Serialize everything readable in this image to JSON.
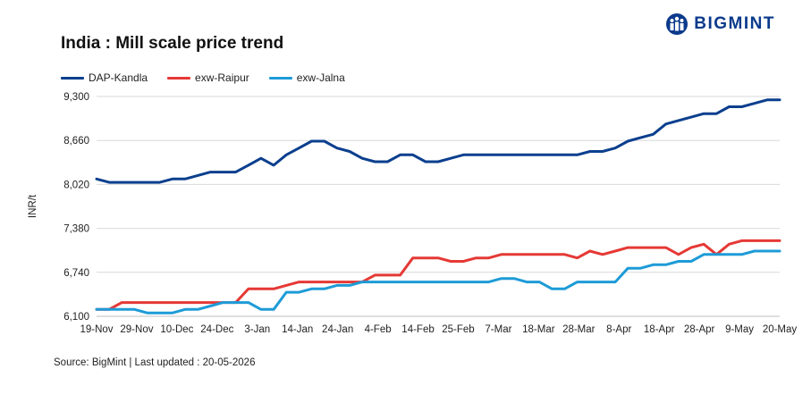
{
  "header": {
    "title": "India : Mill scale price trend",
    "brand": "BIGMINT"
  },
  "footer": {
    "source": "Source: BigMint | Last updated : 20-05-2026"
  },
  "colors": {
    "dap_kandla": "#0b3f8e",
    "exw_raipur": "#e53935",
    "exw_jalna": "#1e9bd7",
    "grid": "#d9d9d9",
    "brand": "#0b3a8c"
  },
  "icons": {
    "logo": "people-logo-icon"
  },
  "chart_data": {
    "type": "line",
    "title": "India : Mill scale price trend",
    "ylabel": "INR/t",
    "xlabel": "",
    "ylim": [
      6100,
      9300
    ],
    "yticks": [
      6100,
      6740,
      7380,
      8020,
      8660,
      9300
    ],
    "ytick_labels": [
      "6,100",
      "6,740",
      "7,380",
      "8,020",
      "8,660",
      "9,300"
    ],
    "xtick_labels": [
      "19-Nov",
      "29-Nov",
      "10-Dec",
      "24-Dec",
      "3-Jan",
      "14-Jan",
      "24-Jan",
      "4-Feb",
      "14-Feb",
      "25-Feb",
      "7-Mar",
      "18-Mar",
      "28-Mar",
      "8-Apr",
      "18-Apr",
      "28-Apr",
      "9-May",
      "20-May"
    ],
    "legend_position": "top-left",
    "grid": true,
    "series": [
      {
        "name": "DAP-Kandla",
        "color": "#0b3f8e",
        "values": [
          8100,
          8050,
          8050,
          8050,
          8050,
          8050,
          8100,
          8100,
          8150,
          8200,
          8200,
          8200,
          8300,
          8400,
          8300,
          8450,
          8550,
          8650,
          8650,
          8550,
          8500,
          8400,
          8350,
          8350,
          8450,
          8450,
          8350,
          8350,
          8400,
          8450,
          8450,
          8450,
          8450,
          8450,
          8450,
          8450,
          8450,
          8450,
          8450,
          8500,
          8500,
          8550,
          8650,
          8700,
          8750,
          8900,
          8950,
          9000,
          9050,
          9050,
          9150,
          9150,
          9200,
          9250,
          9250
        ]
      },
      {
        "name": "exw-Raipur",
        "color": "#e53935",
        "values": [
          6200,
          6200,
          6300,
          6300,
          6300,
          6300,
          6300,
          6300,
          6300,
          6300,
          6300,
          6300,
          6500,
          6500,
          6500,
          6550,
          6600,
          6600,
          6600,
          6600,
          6600,
          6600,
          6700,
          6700,
          6700,
          6950,
          6950,
          6950,
          6900,
          6900,
          6950,
          6950,
          7000,
          7000,
          7000,
          7000,
          7000,
          7000,
          6950,
          7050,
          7000,
          7050,
          7100,
          7100,
          7100,
          7100,
          7000,
          7100,
          7150,
          7000,
          7150,
          7200,
          7200,
          7200,
          7200
        ]
      },
      {
        "name": "exw-Jalna",
        "color": "#1e9bd7",
        "values": [
          6200,
          6200,
          6200,
          6200,
          6150,
          6150,
          6150,
          6200,
          6200,
          6250,
          6300,
          6300,
          6300,
          6200,
          6200,
          6450,
          6450,
          6500,
          6500,
          6550,
          6550,
          6600,
          6600,
          6600,
          6600,
          6600,
          6600,
          6600,
          6600,
          6600,
          6600,
          6600,
          6650,
          6650,
          6600,
          6600,
          6500,
          6500,
          6600,
          6600,
          6600,
          6600,
          6800,
          6800,
          6850,
          6850,
          6900,
          6900,
          7000,
          7000,
          7000,
          7000,
          7050,
          7050,
          7050
        ]
      }
    ]
  }
}
